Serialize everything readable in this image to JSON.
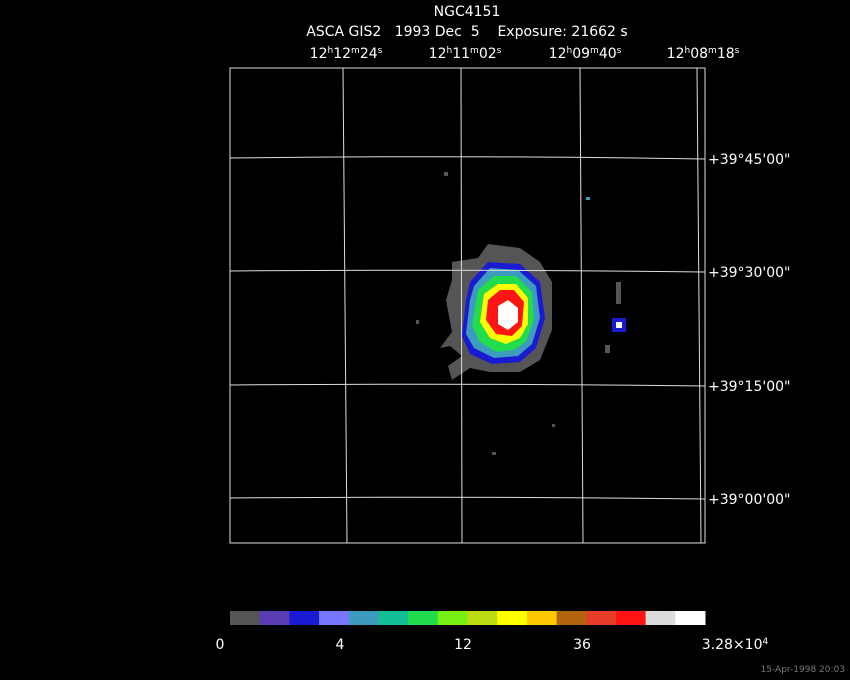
{
  "header": {
    "title": "NGC4151",
    "subtitle": "ASCA GIS2   1993 Dec  5    Exposure: 21662 s"
  },
  "ra_labels": [
    [
      "12",
      "h",
      "12",
      "m",
      "24",
      "s"
    ],
    [
      "12",
      "h",
      "11",
      "m",
      "02",
      "s"
    ],
    [
      "12",
      "h",
      "09",
      "m",
      "40",
      "s"
    ],
    [
      "12",
      "h",
      "08",
      "m",
      "18",
      "s"
    ]
  ],
  "dec_labels": [
    "+39°45'00\"",
    "+39°30'00\"",
    "+39°15'00\"",
    "+39°00'00\""
  ],
  "colorbar": {
    "colors": [
      "#555555",
      "#5a3cb4",
      "#1a1ad2",
      "#7878ff",
      "#3c9bbe",
      "#14be96",
      "#23dc4b",
      "#78f014",
      "#bedc14",
      "#ffff00",
      "#ffc800",
      "#b4640f",
      "#e63c28",
      "#ff1414",
      "#dcdcdc",
      "#ffffff"
    ],
    "labels": [
      [
        "0"
      ],
      [
        "4"
      ],
      [
        "12"
      ],
      [
        "36"
      ],
      [
        "3.28×10",
        "4"
      ]
    ]
  },
  "footer": "15-Apr-1998 20:03"
}
